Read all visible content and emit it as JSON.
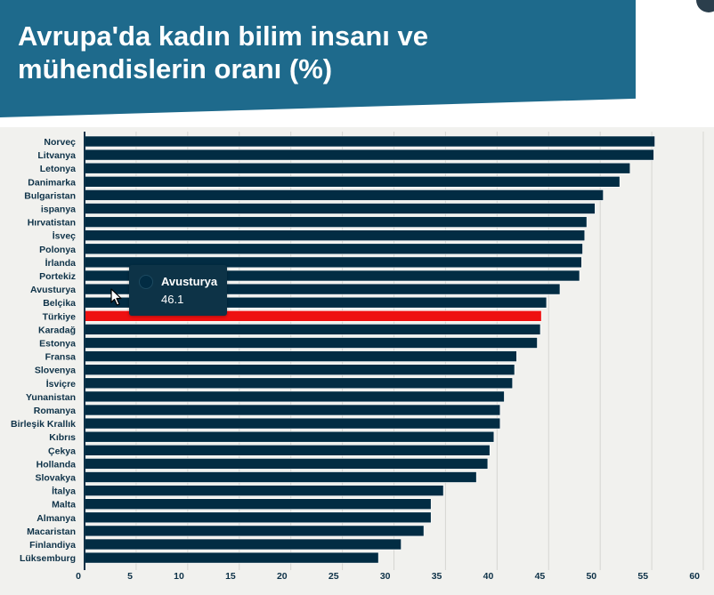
{
  "title": "Avrupa'da kadın bilim insanı ve mühendislerin oranı (%)",
  "colors": {
    "header": "#1e6a8c",
    "bar": "#022c43",
    "highlight": "#ee1111",
    "panel": "#f1f1ee",
    "label": "#0e3248"
  },
  "tooltip": {
    "name": "Avusturya",
    "value": "46.1"
  },
  "chart_data": {
    "type": "bar",
    "orientation": "horizontal",
    "categories": [
      "Norveç",
      "Litvanya",
      "Letonya",
      "Danimarka",
      "Bulgaristan",
      "ispanya",
      "Hırvatistan",
      "İsveç",
      "Polonya",
      "İrlanda",
      "Portekiz",
      "Avusturya",
      "Belçika",
      "Türkiye",
      "Karadağ",
      "Estonya",
      "Fransa",
      "Slovenya",
      "İsviçre",
      "Yunanistan",
      "Romanya",
      "Birleşik Krallık",
      "Kıbrıs",
      "Çekya",
      "Hollanda",
      "Slovakya",
      "İtalya",
      "Malta",
      "Almanya",
      "Macaristan",
      "Finlandiya",
      "Lüksemburg"
    ],
    "values": [
      55.3,
      55.2,
      52.9,
      51.9,
      50.3,
      49.5,
      48.7,
      48.5,
      48.3,
      48.2,
      48.0,
      46.1,
      44.8,
      44.3,
      44.2,
      43.9,
      41.9,
      41.7,
      41.5,
      40.7,
      40.3,
      40.3,
      39.7,
      39.3,
      39.1,
      38.0,
      34.8,
      33.6,
      33.6,
      32.9,
      30.7,
      28.5
    ],
    "highlight_category": "Türkiye",
    "xlim": [
      0,
      60
    ],
    "xticks": [
      0,
      5,
      10,
      15,
      20,
      25,
      30,
      35,
      40,
      45,
      50,
      55,
      60
    ],
    "grid": true,
    "title": "",
    "xlabel": "",
    "ylabel": ""
  }
}
